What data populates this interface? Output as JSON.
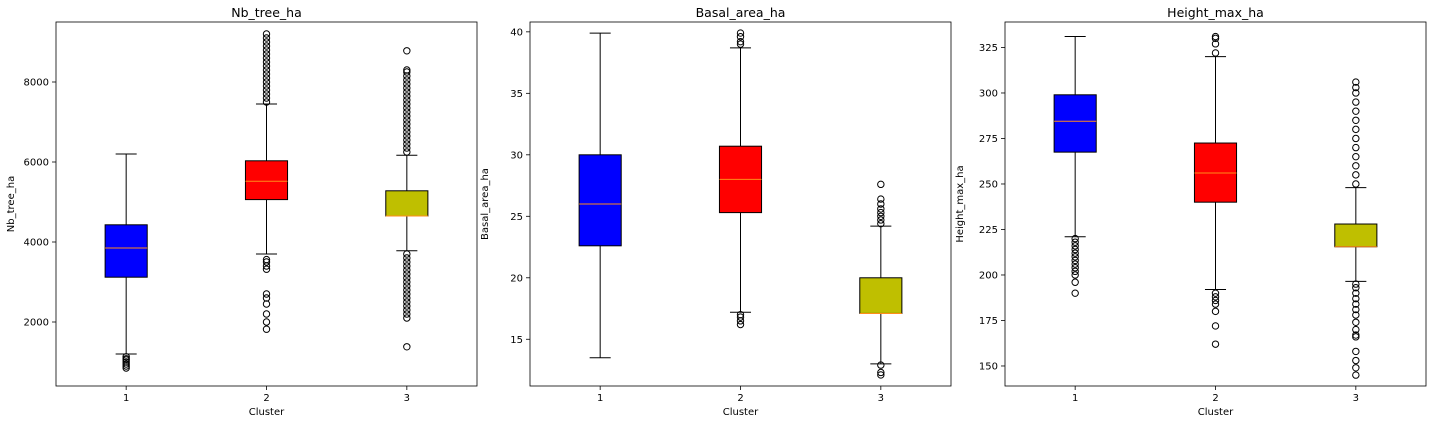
{
  "chart_data": [
    {
      "type": "boxplot",
      "title": "Nb_tree_ha",
      "xlabel": "Cluster",
      "ylabel": "Nb_tree_ha",
      "categories": [
        "1",
        "2",
        "3"
      ],
      "ylim": [
        400,
        9500
      ],
      "yticks": [
        2000,
        4000,
        6000,
        8000
      ],
      "boxes": [
        {
          "category": "1",
          "color": "#0000ff",
          "whisker_low": 1200,
          "q1": 3120,
          "median": 3850,
          "q3": 4430,
          "whisker_high": 6200,
          "outliers": [
            1130,
            1080,
            1050,
            1000,
            950,
            900,
            850
          ]
        },
        {
          "category": "2",
          "color": "#ff0000",
          "whisker_low": 3700,
          "q1": 5060,
          "median": 5520,
          "q3": 6030,
          "whisker_high": 7450,
          "outliers": [
            3400,
            3320,
            3500,
            3560,
            2700,
            2600,
            2450,
            2200,
            2000,
            1820,
            7500,
            7600,
            7700,
            7800,
            7900,
            8000,
            8100,
            8200,
            8300,
            8400,
            8500,
            8600,
            8700,
            8800,
            8900,
            9000,
            9100,
            9200
          ]
        },
        {
          "category": "3",
          "color": "#bfbf00",
          "whisker_low": 3780,
          "q1": 4650,
          "median": 4650,
          "q3": 5280,
          "whisker_high": 6170,
          "outliers": [
            3700,
            3600,
            3500,
            3400,
            3300,
            3200,
            3100,
            3000,
            2900,
            2800,
            2700,
            2600,
            2500,
            2400,
            2300,
            2200,
            2100,
            1380,
            6250,
            6350,
            6450,
            6550,
            6650,
            6750,
            6850,
            6950,
            7050,
            7150,
            7250,
            7350,
            7450,
            7550,
            7650,
            7750,
            7850,
            7950,
            8050,
            8150,
            8250,
            8300,
            8780
          ]
        }
      ]
    },
    {
      "type": "boxplot",
      "title": "Basal_area_ha",
      "xlabel": "Cluster",
      "ylabel": "Basal_area_ha",
      "categories": [
        "1",
        "2",
        "3"
      ],
      "ylim": [
        11.2,
        40.8
      ],
      "yticks": [
        15,
        20,
        25,
        30,
        35,
        40
      ],
      "boxes": [
        {
          "category": "1",
          "color": "#0000ff",
          "whisker_low": 13.5,
          "q1": 22.6,
          "median": 26.0,
          "q3": 30.0,
          "whisker_high": 39.9,
          "outliers": []
        },
        {
          "category": "2",
          "color": "#ff0000",
          "whisker_low": 17.2,
          "q1": 25.3,
          "median": 28.0,
          "q3": 30.7,
          "whisker_high": 38.7,
          "outliers": [
            16.2,
            16.5,
            16.8,
            17.0,
            39.0,
            39.2,
            39.6,
            39.9
          ]
        },
        {
          "category": "3",
          "color": "#bfbf00",
          "whisker_low": 13.0,
          "q1": 17.1,
          "median": 17.1,
          "q3": 20.0,
          "whisker_high": 24.2,
          "outliers": [
            12.1,
            12.3,
            12.9,
            24.4,
            24.7,
            25.0,
            25.3,
            25.6,
            26.0,
            26.4,
            27.6
          ]
        }
      ]
    },
    {
      "type": "boxplot",
      "title": "Height_max_ha",
      "xlabel": "Cluster",
      "ylabel": "Height_max_ha",
      "categories": [
        "1",
        "2",
        "3"
      ],
      "ylim": [
        139,
        339
      ],
      "yticks": [
        150,
        175,
        200,
        225,
        250,
        275,
        300,
        325
      ],
      "boxes": [
        {
          "category": "1",
          "color": "#0000ff",
          "whisker_low": 221,
          "q1": 267.5,
          "median": 284.5,
          "q3": 299,
          "whisker_high": 331,
          "outliers": [
            190,
            196,
            200,
            202,
            204,
            206,
            208,
            210,
            212,
            214,
            216,
            218,
            220
          ]
        },
        {
          "category": "2",
          "color": "#ff0000",
          "whisker_low": 192,
          "q1": 240,
          "median": 256,
          "q3": 272.5,
          "whisker_high": 320,
          "outliers": [
            162,
            172,
            180,
            184,
            186,
            188,
            190,
            322,
            327,
            330,
            331
          ]
        },
        {
          "category": "3",
          "color": "#bfbf00",
          "whisker_low": 196.5,
          "q1": 215.5,
          "median": 215.5,
          "q3": 228,
          "whisker_high": 248,
          "outliers": [
            145,
            149,
            153,
            158,
            166,
            167,
            170,
            174,
            178,
            181,
            184,
            187,
            190,
            193,
            195,
            250,
            255,
            260,
            265,
            270,
            275,
            280,
            285,
            290,
            295,
            300,
            303,
            306
          ]
        }
      ]
    }
  ]
}
